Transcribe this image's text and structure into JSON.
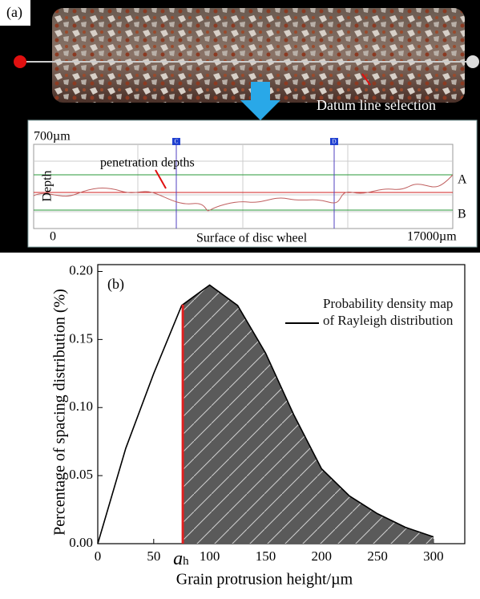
{
  "panel_a": {
    "label": "(a)",
    "photo_caption": "Datum line selection",
    "profile": {
      "y_max_label": "700µm",
      "y_axis_label": "Depth",
      "annotation": "penetration depths",
      "line_a": "A",
      "line_b": "B",
      "x_min_label": "0",
      "x_axis_label": "Surface of disc wheel",
      "x_max_label": "17000µm",
      "cursor_c": "C",
      "cursor_d": "D"
    }
  },
  "chart_data": {
    "type": "line",
    "panel_label": "(b)",
    "x_label": "Grain protrusion height/µm",
    "y_label": "Percentage of spacing distribution (%)",
    "x": [
      0,
      25,
      50,
      75,
      100,
      125,
      150,
      175,
      200,
      225,
      250,
      275,
      300
    ],
    "series": [
      {
        "name": "Probability density map of Rayleigh distribution",
        "color": "#000000",
        "values": [
          0,
          0.07,
          0.125,
          0.175,
          0.19,
          0.175,
          0.14,
          0.095,
          0.055,
          0.035,
          0.022,
          0.012,
          0.005
        ]
      }
    ],
    "marker": {
      "value": 76,
      "label": "a",
      "subscript": "h",
      "color": "#e02020"
    },
    "shade_color": "#555555",
    "xlim": [
      0,
      328
    ],
    "xticks": [
      0,
      50,
      100,
      150,
      200,
      250,
      300
    ],
    "ylim": [
      0,
      0.205
    ],
    "yticks": [
      {
        "value": 0,
        "label": "0.00"
      },
      {
        "value": 0.05,
        "label": "0.05"
      },
      {
        "value": 0.1,
        "label": "0.10"
      },
      {
        "value": 0.15,
        "label": "0.15"
      },
      {
        "value": 0.2,
        "label": "0.20"
      }
    ]
  }
}
